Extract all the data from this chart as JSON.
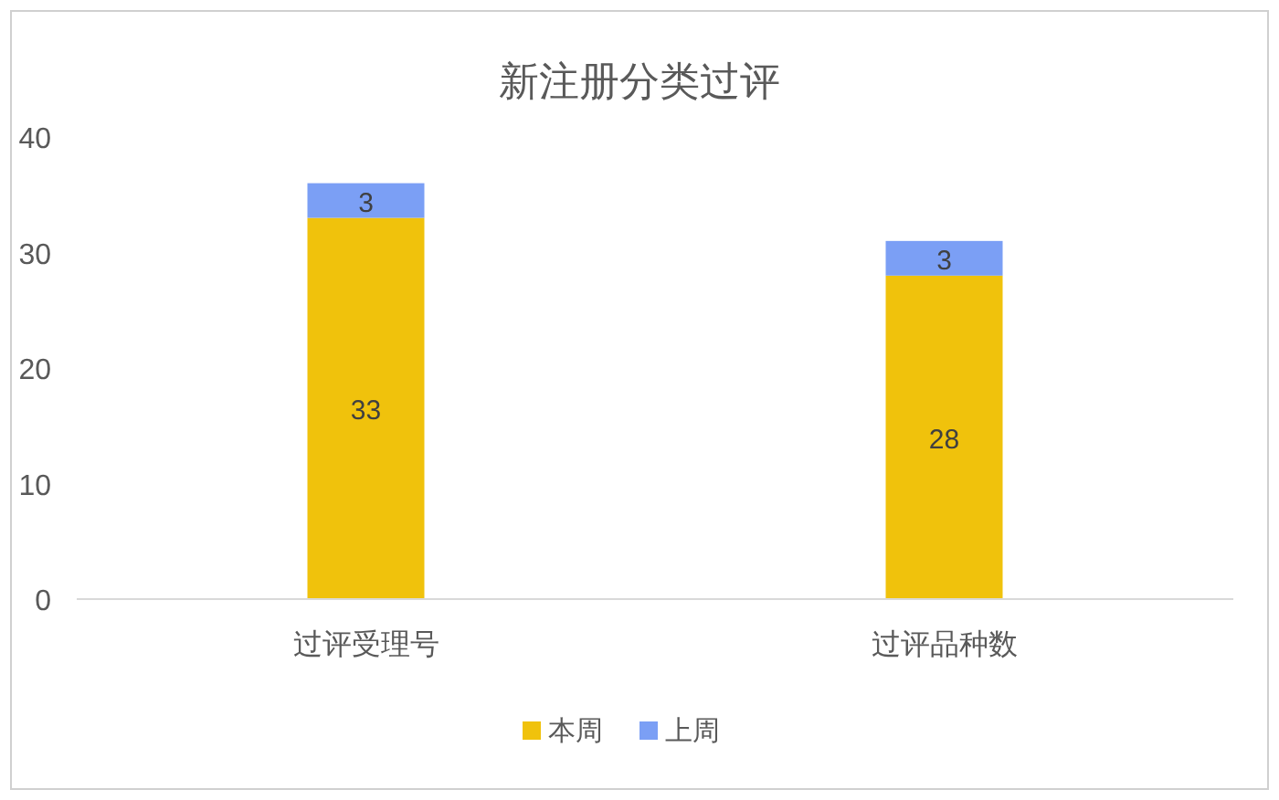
{
  "chart_data": {
    "type": "bar",
    "title": "新注册分类过评",
    "categories": [
      "过评受理号",
      "过评品种数"
    ],
    "series": [
      {
        "name": "本周",
        "color": "#f0c20c",
        "values": [
          33,
          28
        ]
      },
      {
        "name": "上周",
        "color": "#7b9ff5",
        "values": [
          3,
          3
        ]
      }
    ],
    "stacked": true,
    "ylim": [
      0,
      40
    ],
    "yticks": [
      0,
      10,
      20,
      30,
      40
    ],
    "data_labels": true,
    "legend": "bottom"
  }
}
